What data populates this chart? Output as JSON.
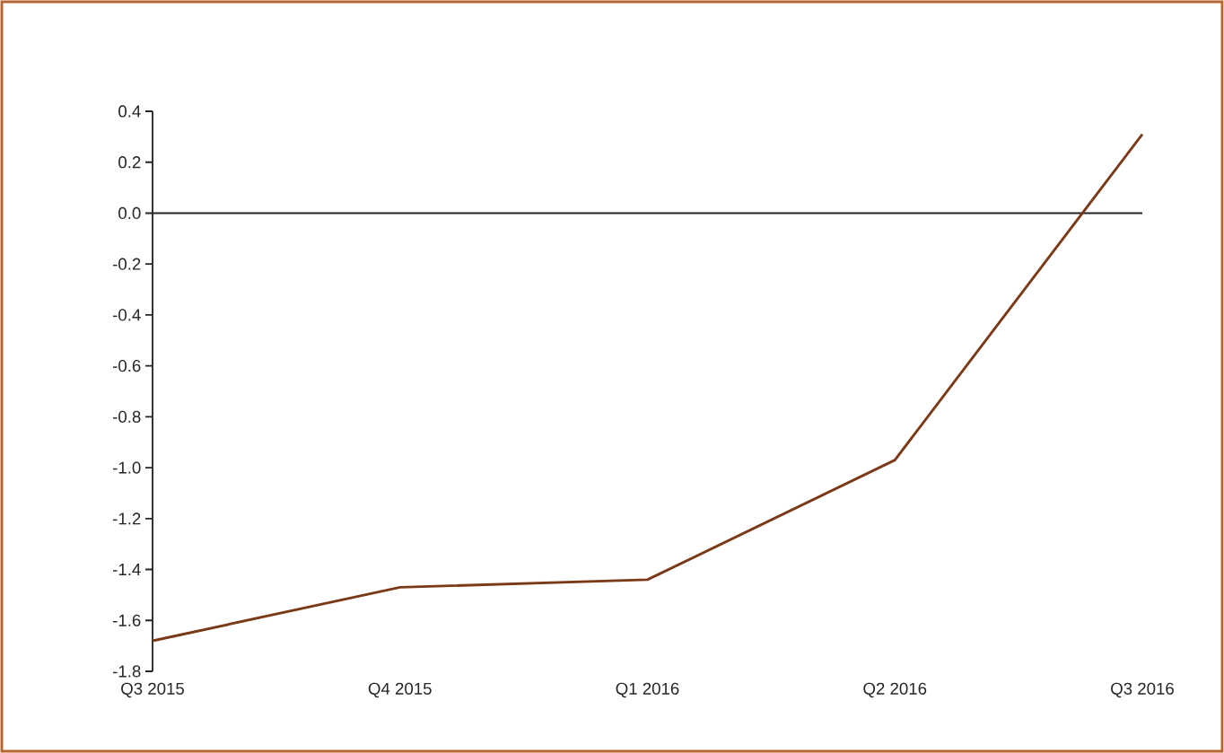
{
  "chart_data": {
    "type": "line",
    "categories": [
      "Q3 2015",
      "Q4 2015",
      "Q1 2016",
      "Q2 2016",
      "Q3 2016"
    ],
    "series": [
      {
        "color": "#7a3a17",
        "values": [
          -1.68,
          -1.47,
          -1.44,
          -0.97,
          0.31
        ]
      }
    ],
    "ylim": [
      -1.8,
      0.4
    ],
    "yticks": [
      -1.8,
      -1.6,
      -1.4,
      -1.2,
      {
        "value": -1.0,
        "label": "-1.0"
      },
      -0.8,
      -0.6,
      -0.4,
      -0.2,
      {
        "value": 0,
        "label": "0.0"
      },
      0.2,
      0.4
    ],
    "ref_lines": [
      {
        "axis": "y",
        "value": 0,
        "color": "#222222"
      }
    ]
  }
}
